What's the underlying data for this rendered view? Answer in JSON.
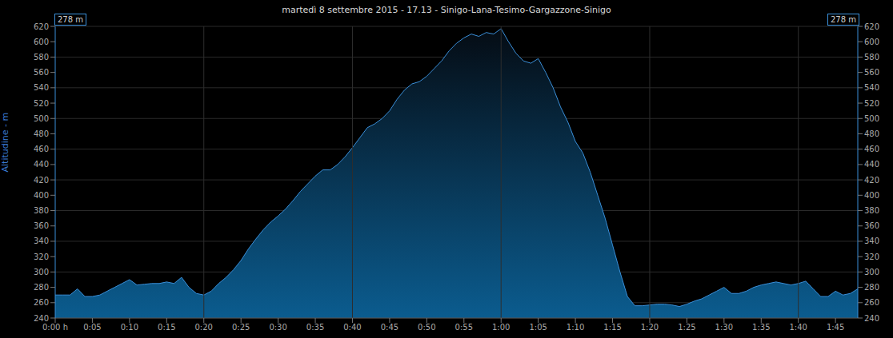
{
  "chart_data": {
    "type": "area",
    "title": "martedì 8 settembre 2015 - 17.13 - Sinigo-Lana-Tesimo-Gargazzone-Sinigo",
    "y_label": "Altitudine - m",
    "annotations": [
      "278 m",
      "278 m"
    ],
    "color": "#3a8fd9",
    "grid": true,
    "x": [
      0,
      1,
      2,
      3,
      4,
      5,
      6,
      7,
      8,
      9,
      10,
      11,
      12,
      13,
      14,
      15,
      16,
      17,
      18,
      19,
      20,
      21,
      22,
      23,
      24,
      25,
      26,
      27,
      28,
      29,
      30,
      31,
      32,
      33,
      34,
      35,
      36,
      37,
      38,
      39,
      40,
      41,
      42,
      43,
      44,
      45,
      46,
      47,
      48,
      49,
      50,
      51,
      52,
      53,
      54,
      55,
      56,
      57,
      58,
      59,
      60,
      61,
      62,
      63,
      64,
      65,
      66,
      67,
      68,
      69,
      70,
      71,
      72,
      73,
      74,
      75,
      76,
      77,
      78,
      79,
      80,
      81,
      82,
      83,
      84,
      85,
      86,
      87,
      88,
      89,
      90,
      91,
      92,
      93,
      94,
      95,
      96,
      97,
      98,
      99,
      100,
      101,
      102,
      103,
      104,
      105,
      106,
      107,
      108
    ],
    "values": [
      270,
      270,
      270,
      278,
      268,
      268,
      270,
      275,
      280,
      285,
      290,
      283,
      284,
      285,
      285,
      287,
      285,
      293,
      280,
      272,
      270,
      275,
      285,
      293,
      303,
      315,
      330,
      343,
      355,
      365,
      373,
      382,
      393,
      405,
      415,
      425,
      433,
      433,
      440,
      450,
      462,
      475,
      488,
      493,
      500,
      510,
      525,
      537,
      545,
      548,
      555,
      565,
      575,
      588,
      598,
      605,
      610,
      607,
      612,
      610,
      617,
      600,
      585,
      575,
      572,
      578,
      560,
      540,
      515,
      495,
      470,
      455,
      430,
      400,
      370,
      335,
      300,
      268,
      256,
      256,
      257,
      258,
      258,
      257,
      255,
      258,
      262,
      265,
      270,
      275,
      280,
      272,
      272,
      275,
      280,
      283,
      285,
      287,
      285,
      283,
      285,
      288,
      278,
      268,
      268,
      275,
      270,
      272,
      278
    ],
    "xlim": [
      0,
      108
    ],
    "xticks": [
      {
        "value": 0,
        "label": "0:00 h"
      },
      {
        "value": 5,
        "label": "0:05"
      },
      {
        "value": 10,
        "label": "0:10"
      },
      {
        "value": 15,
        "label": "0:15"
      },
      {
        "value": 20,
        "label": "0:20"
      },
      {
        "value": 25,
        "label": "0:25"
      },
      {
        "value": 30,
        "label": "0:30"
      },
      {
        "value": 35,
        "label": "0:35"
      },
      {
        "value": 40,
        "label": "0:40"
      },
      {
        "value": 45,
        "label": "0:45"
      },
      {
        "value": 50,
        "label": "0:50"
      },
      {
        "value": 55,
        "label": "0:55"
      },
      {
        "value": 60,
        "label": "1:00"
      },
      {
        "value": 65,
        "label": "1:05"
      },
      {
        "value": 70,
        "label": "1:10"
      },
      {
        "value": 75,
        "label": "1:15"
      },
      {
        "value": 80,
        "label": "1:20"
      },
      {
        "value": 85,
        "label": "1:25"
      },
      {
        "value": 90,
        "label": "1:30"
      },
      {
        "value": 95,
        "label": "1:35"
      },
      {
        "value": 100,
        "label": "1:40"
      },
      {
        "value": 105,
        "label": "1:45"
      }
    ],
    "ylim": [
      240,
      620
    ],
    "yticks": [
      240,
      260,
      280,
      300,
      320,
      340,
      360,
      380,
      400,
      420,
      440,
      460,
      480,
      500,
      520,
      540,
      560,
      580,
      600,
      620
    ]
  }
}
